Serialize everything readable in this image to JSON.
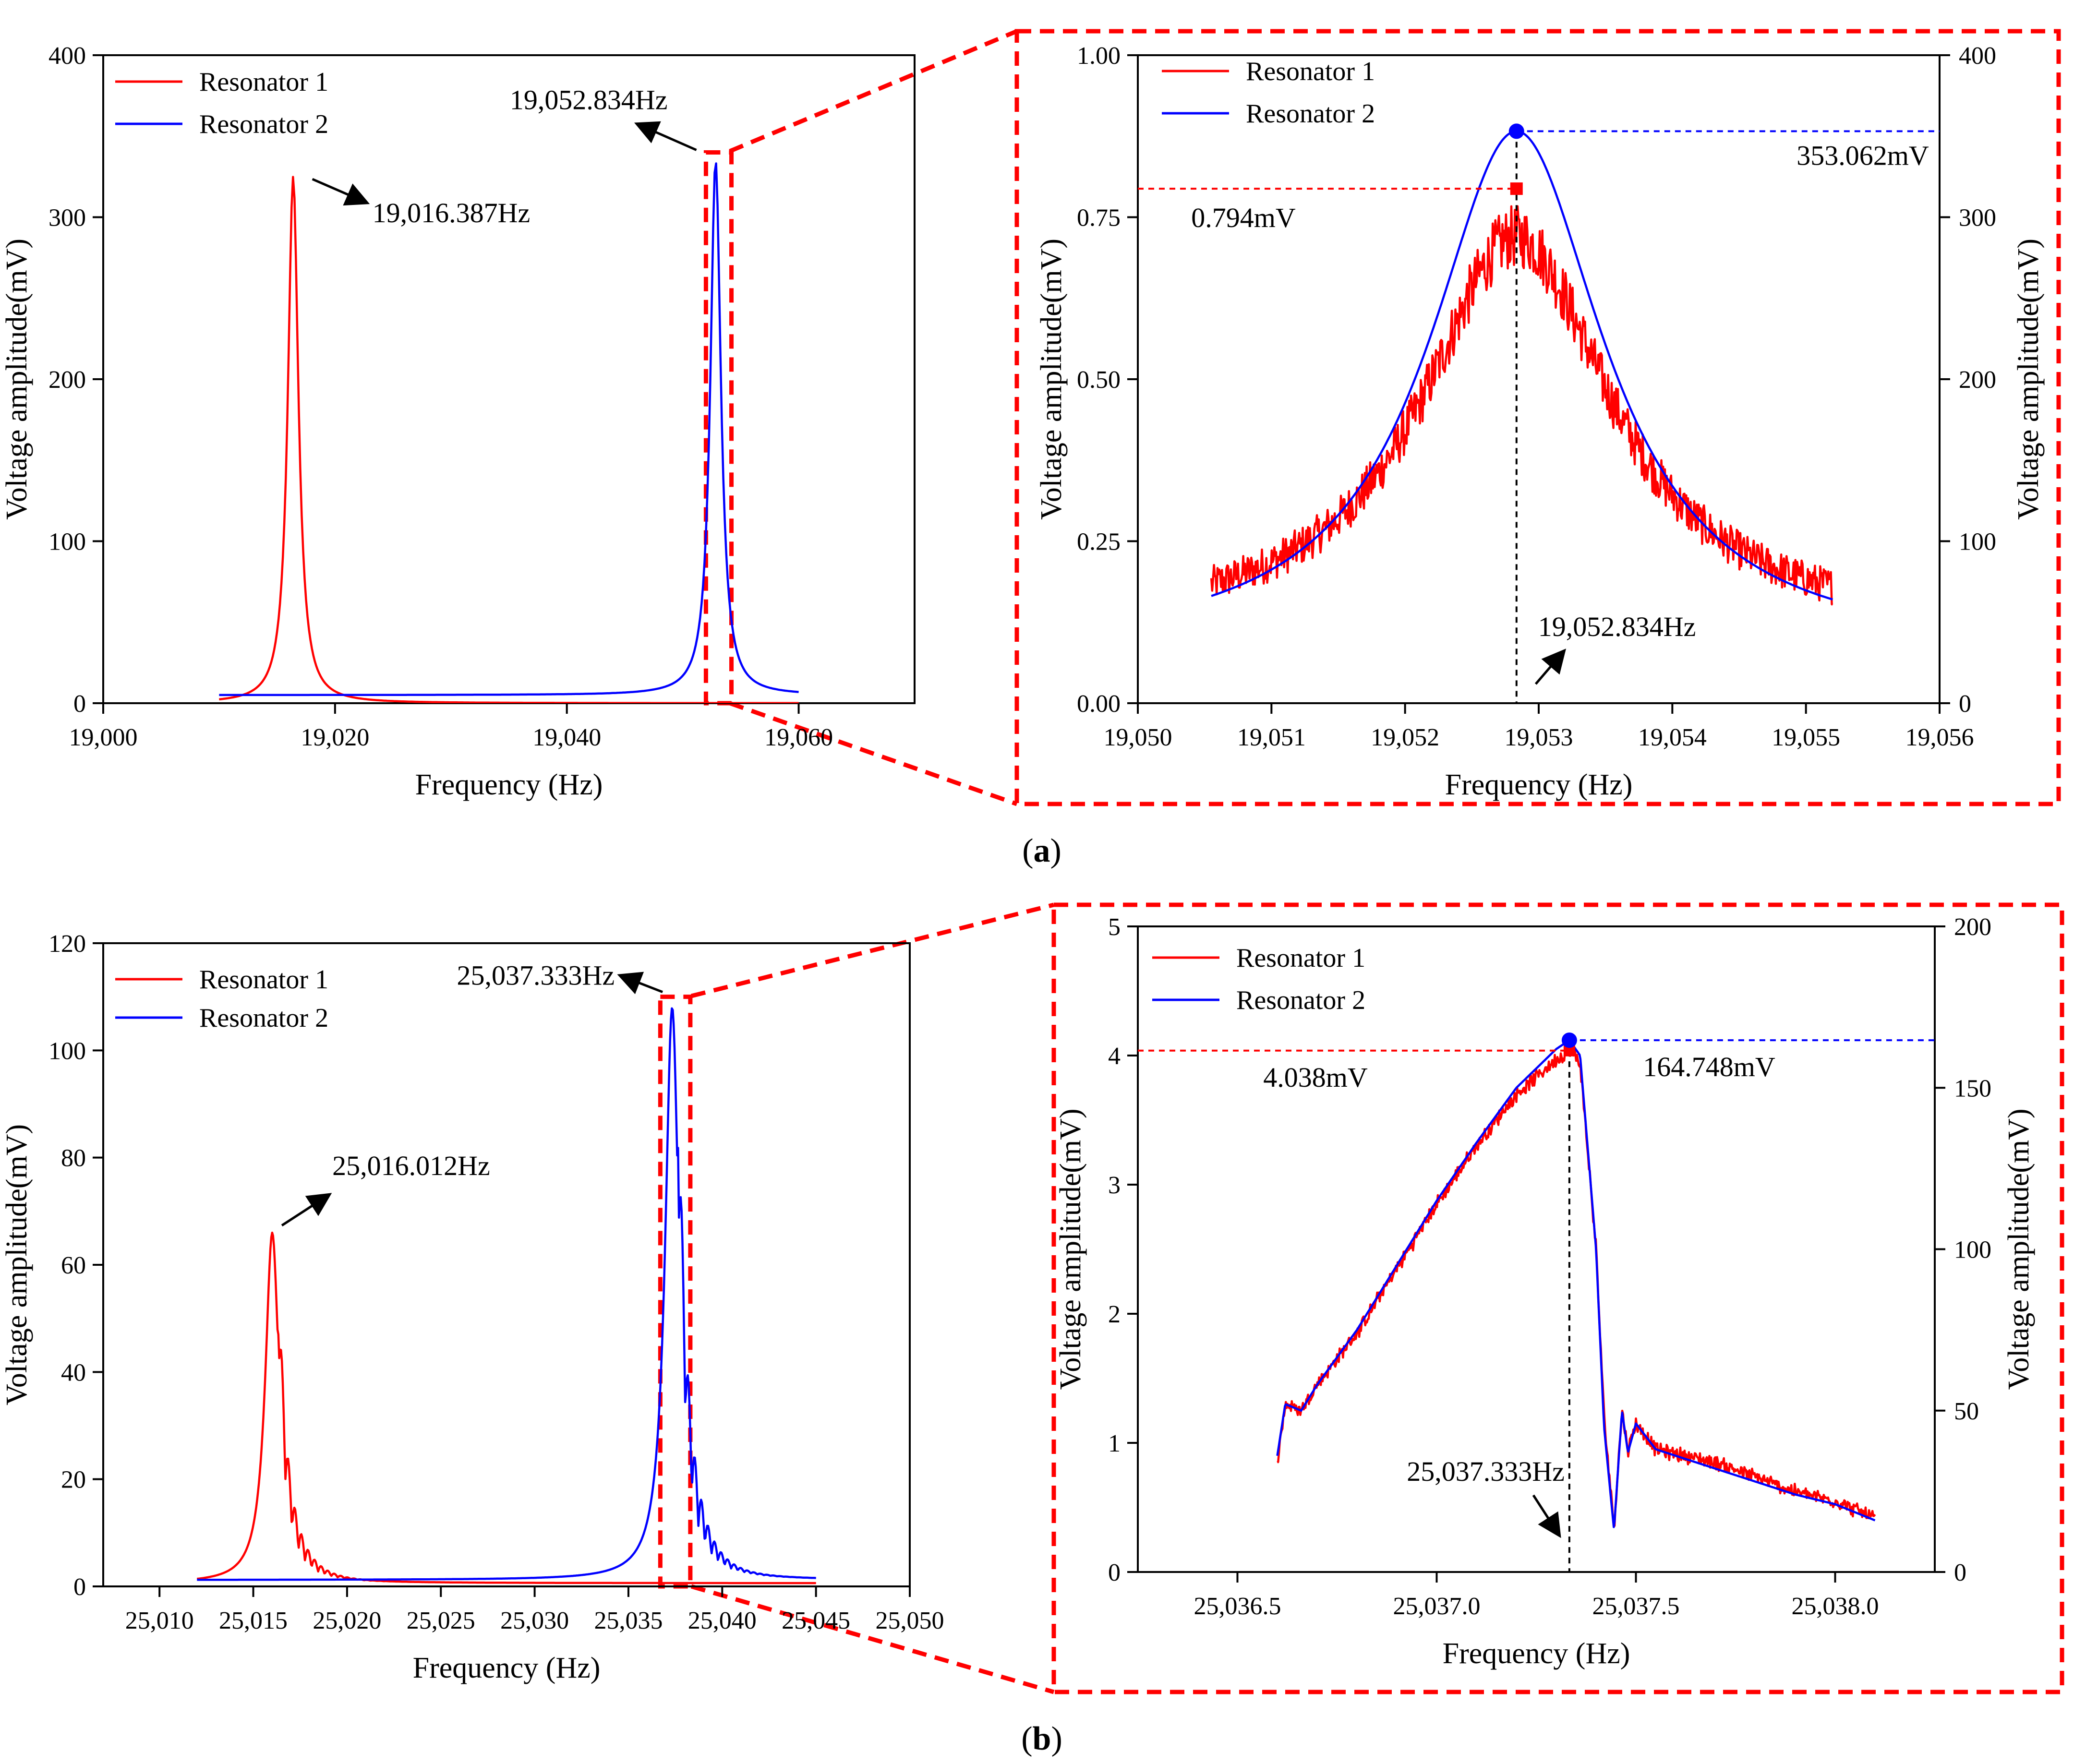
{
  "panel_labels": {
    "a": "a",
    "b": "b"
  },
  "chart_data": [
    {
      "id": "a_main",
      "type": "line",
      "xlabel": "Frequency (Hz)",
      "ylabel": "Voltage amplitude(mV)",
      "xlim": [
        19000,
        19070
      ],
      "ylim": [
        0,
        400
      ],
      "xticks": [
        "19,000",
        "19,020",
        "19,040",
        "19,060"
      ],
      "yticks": [
        "0",
        "100",
        "200",
        "300",
        "400"
      ],
      "legend": "top-left",
      "series": [
        {
          "name": "Resonator 1",
          "color": "#ff0000",
          "shape": "lorentz",
          "peak_x": 19016.387,
          "peak_y": 325,
          "gamma": 0.55,
          "base": 0,
          "x_range": [
            19010,
            19060
          ]
        },
        {
          "name": "Resonator 2",
          "color": "#0000ff",
          "shape": "lorentz",
          "peak_x": 19052.834,
          "peak_y": 335,
          "gamma": 0.55,
          "base": 5,
          "x_range": [
            19010,
            19060
          ]
        }
      ],
      "annotations": [
        {
          "text": "19,016.387Hz",
          "x": 19016.387,
          "y": 325
        },
        {
          "text": "19,052.834Hz",
          "x": 19052.834,
          "y": 340
        }
      ]
    },
    {
      "id": "a_zoom",
      "type": "line",
      "xlabel": "Frequency (Hz)",
      "ylabel": "Voltage amplitude(mV)",
      "y2label": "Voltage amplitude(mV)",
      "xlim": [
        19050,
        19056
      ],
      "ylim": [
        0,
        1
      ],
      "y2lim": [
        0,
        400
      ],
      "xticks": [
        "19,050",
        "19,051",
        "19,052",
        "19,053",
        "19,054",
        "19,055",
        "19,056"
      ],
      "yticks": [
        "0.00",
        "0.25",
        "0.50",
        "0.75",
        "1.00"
      ],
      "y2ticks": [
        "0",
        "100",
        "200",
        "300",
        "400"
      ],
      "legend": "top-left",
      "series": [
        {
          "name": "Resonator 1",
          "color": "#ff0000",
          "axis": "left",
          "shape": "noisy_lorentz",
          "peak_x": 19052.834,
          "peak_y": 0.72,
          "gamma": 0.85,
          "base": 0.11,
          "noise": 0.035,
          "x_range": [
            19050.55,
            19055.2
          ]
        },
        {
          "name": "Resonator 2",
          "color": "#0000ff",
          "axis": "right",
          "shape": "lorentz",
          "peak_x": 19052.834,
          "peak_y": 353.062,
          "gamma": 0.8,
          "base": 31,
          "x_range": [
            19050.55,
            19055.2
          ]
        }
      ],
      "annotations": [
        {
          "text": "0.794mV",
          "x": 19052.834,
          "y": 0.794
        },
        {
          "text": "353.062mV",
          "x": 19052.834,
          "y2": 353.062
        },
        {
          "text": "19,052.834Hz",
          "x": 19052.834
        }
      ]
    },
    {
      "id": "b_main",
      "type": "line",
      "xlabel": "Frequency (Hz)",
      "ylabel": "Voltage amplitude(mV)",
      "xlim": [
        25007,
        25050
      ],
      "ylim": [
        0,
        120
      ],
      "xticks": [
        "25,010",
        "25,015",
        "25,020",
        "25,025",
        "25,030",
        "25,035",
        "25,040",
        "25,045",
        "25,050"
      ],
      "yticks": [
        "0",
        "20",
        "40",
        "60",
        "80",
        "100",
        "120"
      ],
      "legend": "top-left",
      "series": [
        {
          "name": "Resonator 1",
          "color": "#ff0000",
          "shape": "lorentz_osc",
          "peak_x": 25016.012,
          "peak_y": 66,
          "gamma": 0.45,
          "base": 0.6,
          "x_range": [
            25012,
            25045
          ]
        },
        {
          "name": "Resonator 2",
          "color": "#0000ff",
          "shape": "lorentz_osc",
          "peak_x": 25037.333,
          "peak_y": 108,
          "gamma": 0.45,
          "base": 1.2,
          "x_range": [
            25012,
            25045
          ]
        }
      ],
      "annotations": [
        {
          "text": "25,016.012Hz",
          "x": 25016.012,
          "y": 66
        },
        {
          "text": "25,037.333Hz",
          "x": 25037.333,
          "y": 110
        }
      ]
    },
    {
      "id": "b_zoom",
      "type": "line",
      "xlabel": "Frequency (Hz)",
      "ylabel": "Voltage amplitude(mV)",
      "y2label": "Voltage amplitude(mV)",
      "xlim": [
        25036.25,
        25038.25
      ],
      "ylim": [
        0,
        5
      ],
      "y2lim": [
        0,
        200
      ],
      "xticks": [
        "25,036.5",
        "25,037.0",
        "25,037.5",
        "25,038.0"
      ],
      "yticks": [
        "0",
        "1",
        "2",
        "3",
        "4",
        "5"
      ],
      "y2ticks": [
        "0",
        "50",
        "100",
        "150",
        "200"
      ],
      "legend": "top-left",
      "series": [
        {
          "name": "Resonator 1",
          "color": "#ff0000",
          "axis": "left",
          "shape": "duffing",
          "noise": 0.03,
          "x_range": [
            25036.6,
            25038.1
          ],
          "points": [
            [
              25036.6,
              0.85
            ],
            [
              25036.62,
              1.3
            ],
            [
              25036.66,
              1.25
            ],
            [
              25036.7,
              1.45
            ],
            [
              25036.8,
              1.85
            ],
            [
              25036.9,
              2.35
            ],
            [
              25037.0,
              2.85
            ],
            [
              25037.1,
              3.3
            ],
            [
              25037.2,
              3.7
            ],
            [
              25037.3,
              3.97
            ],
            [
              25037.333,
              4.038
            ],
            [
              25037.36,
              3.95
            ],
            [
              25037.4,
              2.5
            ],
            [
              25037.42,
              1.2
            ],
            [
              25037.445,
              0.35
            ],
            [
              25037.465,
              1.25
            ],
            [
              25037.48,
              0.95
            ],
            [
              25037.5,
              1.15
            ],
            [
              25037.55,
              0.95
            ],
            [
              25037.7,
              0.85
            ],
            [
              25037.9,
              0.62
            ],
            [
              25038.0,
              0.55
            ],
            [
              25038.1,
              0.42
            ]
          ]
        },
        {
          "name": "Resonator 2",
          "color": "#0000ff",
          "axis": "right",
          "shape": "duffing",
          "noise": 0,
          "x_range": [
            25036.6,
            25038.1
          ],
          "points": [
            [
              25036.6,
              36
            ],
            [
              25036.62,
              52
            ],
            [
              25036.66,
              50
            ],
            [
              25036.7,
              58
            ],
            [
              25036.8,
              75
            ],
            [
              25036.9,
              95
            ],
            [
              25037.0,
              115
            ],
            [
              25037.1,
              133
            ],
            [
              25037.2,
              150
            ],
            [
              25037.3,
              162
            ],
            [
              25037.333,
              164.748
            ],
            [
              25037.36,
              160
            ],
            [
              25037.4,
              100
            ],
            [
              25037.42,
              45
            ],
            [
              25037.445,
              13
            ],
            [
              25037.465,
              50
            ],
            [
              25037.48,
              37
            ],
            [
              25037.5,
              46
            ],
            [
              25037.55,
              38
            ],
            [
              25037.7,
              32
            ],
            [
              25037.9,
              24
            ],
            [
              25038.0,
              21
            ],
            [
              25038.1,
              16
            ]
          ]
        }
      ],
      "annotations": [
        {
          "text": "4.038mV",
          "x": 25037.333,
          "y": 4.038
        },
        {
          "text": "164.748mV",
          "x": 25037.333,
          "y2": 164.748
        },
        {
          "text": "25,037.333Hz",
          "x": 25037.333
        }
      ]
    }
  ]
}
